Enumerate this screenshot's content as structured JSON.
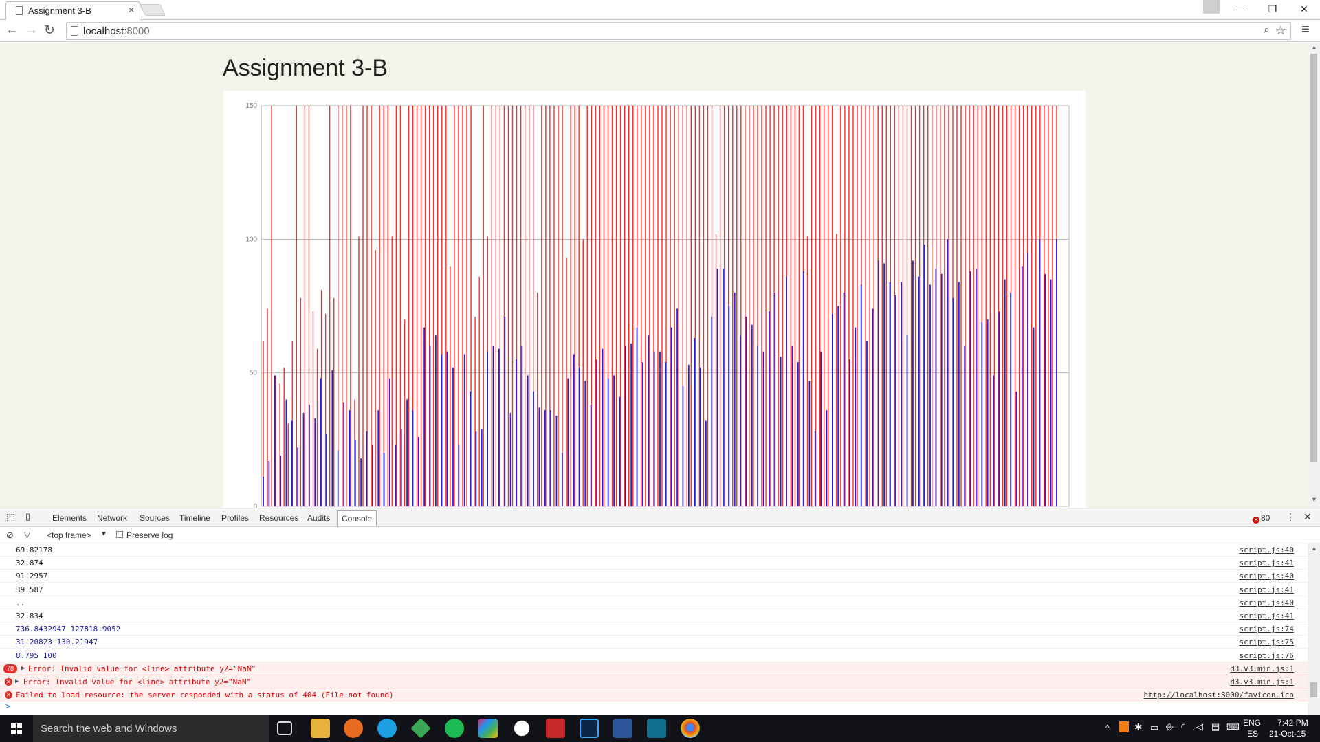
{
  "browser": {
    "tab_title": "Assignment 3-B",
    "tab_close": "×",
    "url_host": "localhost",
    "url_port": ":8000",
    "window_controls": [
      "—",
      "❐",
      "✕"
    ]
  },
  "page": {
    "title": "Assignment 3-B"
  },
  "chart_data": {
    "type": "bar",
    "ylim": [
      0,
      150
    ],
    "yticks": [
      "0",
      "50",
      "100",
      "150"
    ],
    "grid": true,
    "series": [
      {
        "color": "#ff2a2a",
        "values": [
          62,
          74,
          150,
          49,
          46,
          52,
          31,
          62,
          150,
          78,
          150,
          150,
          73,
          59,
          81,
          72,
          150,
          78,
          150,
          150,
          150,
          150,
          40,
          101,
          150,
          150,
          150,
          96,
          150,
          150,
          150,
          101,
          150,
          150,
          70,
          150,
          150,
          150,
          150,
          150,
          150,
          150,
          150,
          150,
          150,
          90,
          150,
          150,
          150,
          150,
          150,
          71,
          86,
          150,
          101,
          150,
          150,
          150,
          150,
          150,
          150,
          150,
          150,
          150,
          150,
          150,
          80,
          150,
          150,
          150,
          150,
          150,
          150,
          93,
          150,
          150,
          150,
          100,
          150,
          150,
          150,
          150,
          150,
          150,
          150,
          150,
          150,
          150,
          150,
          150,
          150,
          150,
          150,
          150,
          150,
          150,
          150,
          150,
          150,
          150,
          150,
          150,
          150,
          150,
          150,
          150,
          150,
          150,
          150,
          102,
          150,
          150,
          150,
          150,
          150,
          150,
          150,
          150,
          150,
          150,
          150,
          150,
          150,
          150,
          150,
          150,
          150,
          150,
          150,
          150,
          150,
          101,
          150,
          150,
          150,
          150,
          150,
          150,
          102,
          150,
          150,
          150,
          150,
          150,
          150,
          150,
          150,
          150,
          150,
          150,
          150,
          150,
          150,
          150,
          150,
          150,
          150,
          150,
          150,
          150,
          150,
          150,
          150,
          150,
          150,
          150,
          150,
          150,
          150,
          150,
          150,
          150,
          150,
          150,
          150,
          150,
          150,
          150,
          150,
          150,
          150,
          150,
          150,
          150,
          150,
          150,
          150,
          150,
          150,
          150,
          150,
          150
        ]
      },
      {
        "color": "#2d1fd6",
        "values": [
          11,
          17,
          49,
          19,
          40,
          32,
          22,
          35,
          38,
          33,
          48,
          27,
          51,
          21,
          39,
          36,
          25,
          18,
          28,
          23,
          36,
          20,
          48,
          23,
          29,
          40,
          36,
          26,
          67,
          60,
          64,
          57,
          58,
          52,
          23,
          57,
          43,
          28,
          29,
          58,
          60,
          59,
          71,
          35,
          55,
          60,
          49,
          43,
          37,
          36,
          36,
          34,
          20,
          48,
          57,
          52,
          47,
          38,
          55,
          59,
          48,
          49,
          41,
          60,
          61,
          67,
          54,
          64,
          58,
          58,
          54,
          67,
          74,
          45,
          53,
          63,
          52,
          32,
          71,
          89,
          89,
          75,
          80,
          64,
          71,
          68,
          60,
          58,
          73,
          80,
          56,
          86,
          60,
          54,
          88,
          47,
          28,
          58,
          36,
          72,
          75,
          80,
          55,
          67,
          83,
          62,
          74,
          92,
          91,
          84,
          79,
          84,
          64,
          92,
          86,
          98,
          83,
          89,
          87,
          100,
          78,
          84,
          60,
          88,
          89,
          69,
          70,
          49,
          73,
          85,
          80,
          43,
          90,
          95,
          67,
          100,
          87,
          85,
          100
        ]
      }
    ]
  },
  "devtools": {
    "tabs": [
      "Elements",
      "Network",
      "Sources",
      "Timeline",
      "Profiles",
      "Resources",
      "Audits",
      "Console"
    ],
    "active_tab": "Console",
    "error_count": "80",
    "frame_selector": "<top frame>",
    "preserve_log_label": "Preserve log",
    "rows": [
      {
        "msg": "69.82178",
        "src": "script.js:40",
        "kind": "log"
      },
      {
        "msg": "32.874",
        "src": "script.js:41",
        "kind": "log"
      },
      {
        "msg": "91.2957",
        "src": "script.js:40",
        "kind": "log"
      },
      {
        "msg": "39.587",
        "src": "script.js:41",
        "kind": "log"
      },
      {
        "msg": "..",
        "src": "script.js:40",
        "kind": "log"
      },
      {
        "msg": "32.834",
        "src": "script.js:41",
        "kind": "log"
      },
      {
        "msg": "736.8432947 127818.9052",
        "src": "script.js:74",
        "kind": "blue"
      },
      {
        "msg": "31.20823 130.21947",
        "src": "script.js:75",
        "kind": "blue"
      },
      {
        "msg": "8.795 100",
        "src": "script.js:76",
        "kind": "blue"
      },
      {
        "msg": "Error: Invalid value for <line> attribute y2=\"NaN\"",
        "src": "d3.v3.min.js:1",
        "kind": "err",
        "badge": "78"
      },
      {
        "msg": "Error: Invalid value for <line> attribute y2=\"NaN\"",
        "src": "d3.v3.min.js:1",
        "kind": "err"
      },
      {
        "msg": "Failed to load resource: the server responded with a status of 404 (File not found)",
        "src": "http://localhost:8000/favicon.ico",
        "kind": "err-plain"
      }
    ]
  },
  "taskbar": {
    "search_placeholder": "Search the web and Windows",
    "lang_top": "ENG",
    "lang_bottom": "ES",
    "time": "7:42 PM",
    "date": "21-Oct-15"
  }
}
